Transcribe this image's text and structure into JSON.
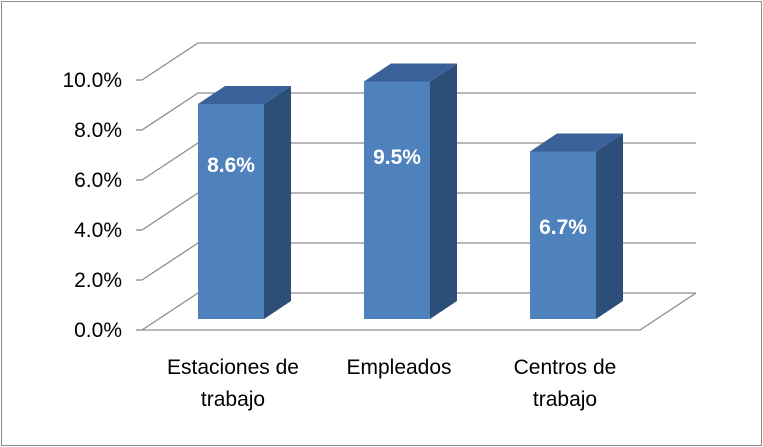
{
  "chart_data": {
    "type": "bar",
    "style": "3d-column",
    "categories": [
      [
        "Estaciones de",
        "trabajo"
      ],
      [
        "Empleados"
      ],
      [
        "Centros de",
        "trabajo"
      ]
    ],
    "values": [
      8.6,
      9.5,
      6.7
    ],
    "data_labels": [
      "8.6%",
      "9.5%",
      "6.7%"
    ],
    "y_ticks": [
      "0.0%",
      "2.0%",
      "4.0%",
      "6.0%",
      "8.0%",
      "10.0%"
    ],
    "ylim": [
      0,
      10
    ],
    "grid": true,
    "legend": "none",
    "colors": {
      "bar_front": "#4f81bd",
      "bar_side": "#2e4e7a",
      "bar_top": "#3a6199",
      "grid": "#8c8c8c",
      "label": "#ffffff"
    }
  }
}
